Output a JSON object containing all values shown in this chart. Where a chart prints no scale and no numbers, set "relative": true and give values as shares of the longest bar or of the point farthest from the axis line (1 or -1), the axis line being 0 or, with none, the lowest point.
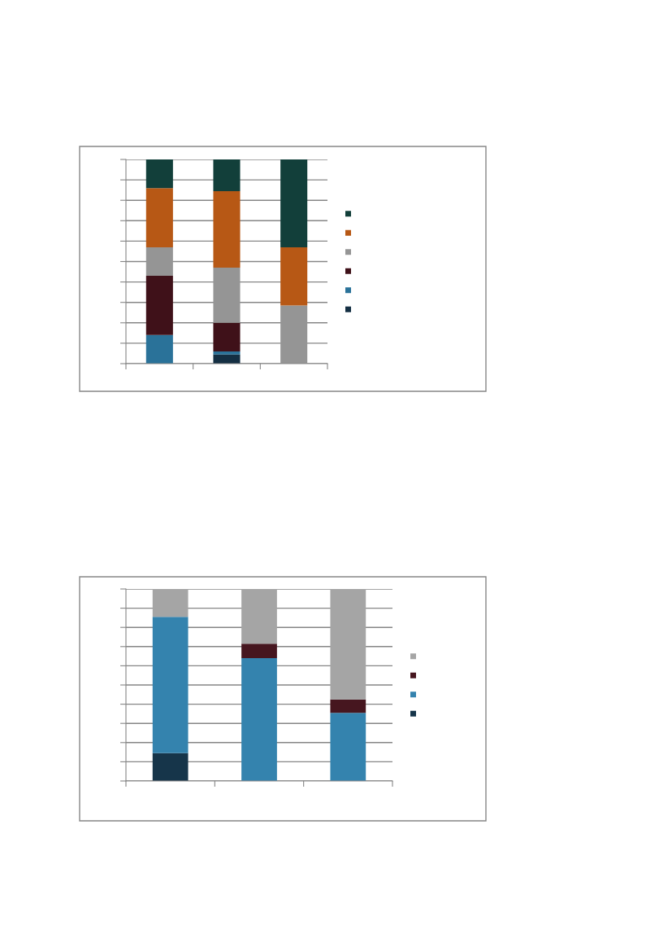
{
  "chart_data": [
    {
      "type": "bar",
      "stacked": true,
      "relative": true,
      "grid": "y",
      "categories": [
        null,
        null,
        null
      ],
      "series": [
        {
          "color": "#142f43",
          "values": [
            null,
            0.045,
            null
          ]
        },
        {
          "color": "#2a7299",
          "values": [
            0.14,
            0.015,
            null
          ]
        },
        {
          "color": "#3f1119",
          "values": [
            0.29,
            0.14,
            null
          ]
        },
        {
          "color": "#959595",
          "values": [
            0.14,
            0.27,
            0.285
          ]
        },
        {
          "color": "#b75815",
          "values": [
            0.29,
            0.375,
            0.285
          ]
        },
        {
          "color": "#123f3a",
          "values": [
            0.14,
            0.155,
            0.43
          ]
        }
      ]
    },
    {
      "type": "bar",
      "stacked": true,
      "relative": true,
      "grid": "y",
      "categories": [
        null,
        null,
        null
      ],
      "series": [
        {
          "color": "#16354a",
          "values": [
            0.145,
            null,
            null
          ]
        },
        {
          "color": "#3483ae",
          "values": [
            0.71,
            0.64,
            0.355
          ]
        },
        {
          "color": "#46161f",
          "values": [
            null,
            0.075,
            0.07
          ]
        },
        {
          "color": "#a5a5a5",
          "values": [
            0.145,
            0.285,
            0.575
          ]
        }
      ]
    }
  ]
}
